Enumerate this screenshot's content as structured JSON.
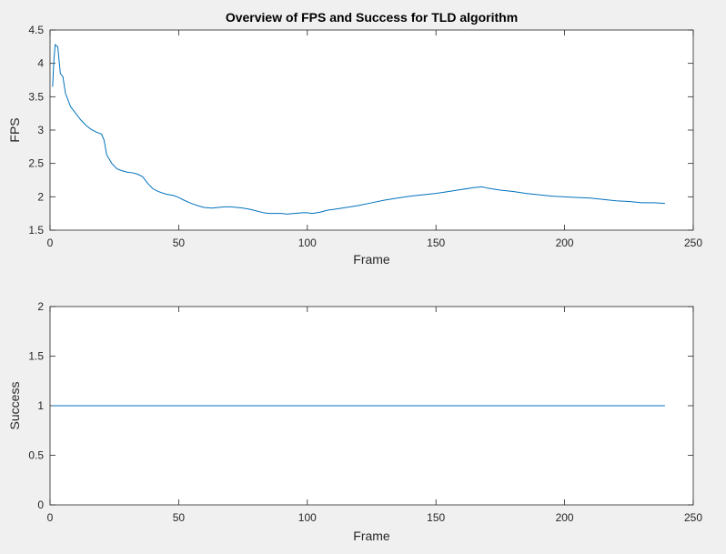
{
  "chart_data": [
    {
      "type": "line",
      "title": "Overview of FPS and Success for TLD algorithm",
      "xlabel": "Frame",
      "ylabel": "FPS",
      "xlim": [
        0,
        250
      ],
      "ylim": [
        1.5,
        4.5
      ],
      "xticks": [
        "0",
        "50",
        "100",
        "150",
        "200",
        "250"
      ],
      "yticks": [
        "1.5",
        "2",
        "2.5",
        "3",
        "3.5",
        "4",
        "4.5"
      ],
      "grid": false,
      "color": "#0072bd",
      "series": [
        {
          "x": [
            1,
            1.5,
            2,
            3,
            4,
            5,
            6,
            7,
            8,
            10,
            12,
            14,
            16,
            18,
            20,
            21,
            22,
            24,
            26,
            28,
            30,
            32,
            34,
            36,
            38,
            40,
            42,
            45,
            48,
            50,
            52,
            55,
            58,
            60,
            63,
            65,
            68,
            70,
            73,
            75,
            78,
            80,
            83,
            85,
            88,
            90,
            92,
            95,
            98,
            100,
            102,
            105,
            108,
            110,
            115,
            120,
            125,
            130,
            135,
            140,
            145,
            150,
            155,
            160,
            165,
            168,
            170,
            175,
            180,
            185,
            190,
            195,
            200,
            205,
            210,
            215,
            220,
            225,
            230,
            235,
            239
          ],
          "y": [
            3.65,
            4.05,
            4.28,
            4.25,
            3.85,
            3.8,
            3.55,
            3.45,
            3.35,
            3.25,
            3.15,
            3.07,
            3.01,
            2.97,
            2.94,
            2.85,
            2.63,
            2.5,
            2.42,
            2.39,
            2.37,
            2.36,
            2.34,
            2.3,
            2.2,
            2.12,
            2.08,
            2.04,
            2.02,
            1.99,
            1.95,
            1.9,
            1.86,
            1.84,
            1.83,
            1.84,
            1.85,
            1.85,
            1.84,
            1.83,
            1.81,
            1.79,
            1.76,
            1.75,
            1.75,
            1.75,
            1.74,
            1.75,
            1.76,
            1.76,
            1.75,
            1.77,
            1.8,
            1.81,
            1.84,
            1.87,
            1.91,
            1.95,
            1.98,
            2.01,
            2.03,
            2.05,
            2.08,
            2.11,
            2.14,
            2.15,
            2.13,
            2.1,
            2.08,
            2.05,
            2.03,
            2.01,
            2.0,
            1.99,
            1.98,
            1.96,
            1.94,
            1.93,
            1.91,
            1.91,
            1.9
          ]
        }
      ]
    },
    {
      "type": "line",
      "title": "",
      "xlabel": "Frame",
      "ylabel": "Success",
      "xlim": [
        0,
        250
      ],
      "ylim": [
        0,
        2
      ],
      "xticks": [
        "0",
        "50",
        "100",
        "150",
        "200",
        "250"
      ],
      "yticks": [
        "0",
        "0.5",
        "1",
        "1.5",
        "2"
      ],
      "grid": false,
      "color": "#0072bd",
      "series": [
        {
          "x": [
            1,
            239
          ],
          "y": [
            1,
            1
          ]
        }
      ]
    }
  ]
}
